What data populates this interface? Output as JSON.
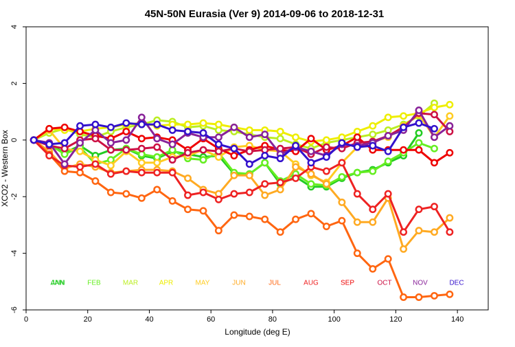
{
  "chart_data": {
    "type": "line",
    "title": "45N-50N Eurasia (Ver 9)   2014-09-06 to 2018-12-31",
    "xlabel": "Longitude (deg E)",
    "ylabel": "XCO2 - Western Box",
    "xlim": [
      0,
      150
    ],
    "ylim": [
      -6,
      4
    ],
    "xticks": [
      0,
      20,
      40,
      60,
      80,
      100,
      120,
      140
    ],
    "yticks": [
      -6,
      -4,
      -2,
      0,
      2,
      4
    ],
    "grid": false,
    "legend_placement": "inside-bottom",
    "series": [
      {
        "name": "JAN",
        "color": "#22cc22",
        "x": [
          2.5,
          7.5,
          12.5,
          17.5,
          22.5,
          27.5,
          32.5,
          37.5,
          42.5,
          47.5,
          52.5,
          57.5,
          62.5,
          67.5,
          72.5,
          77.5,
          82.5,
          87.5,
          92.5,
          97.5,
          102.5,
          107.5,
          112.5,
          117.5,
          122.5,
          127.5
        ],
        "y": [
          0.0,
          -0.15,
          -0.45,
          -0.2,
          -0.55,
          -0.35,
          -0.3,
          -0.55,
          -0.65,
          -0.4,
          -0.5,
          -0.6,
          -0.55,
          -1.2,
          -1.2,
          -0.8,
          -1.55,
          -1.3,
          -1.65,
          -1.65,
          -1.35,
          -1.15,
          -1.05,
          -0.8,
          -0.55,
          0.25
        ]
      },
      {
        "name": "FEB",
        "color": "#66ee22",
        "x": [
          2.5,
          7.5,
          12.5,
          17.5,
          22.5,
          27.5,
          32.5,
          37.5,
          42.5,
          47.5,
          52.5,
          57.5,
          62.5,
          67.5,
          72.5,
          77.5,
          82.5,
          87.5,
          92.5,
          97.5,
          102.5,
          107.5,
          112.5,
          117.5,
          122.5,
          127.5,
          132.5
        ],
        "y": [
          0.0,
          -0.15,
          -0.5,
          -0.25,
          -0.85,
          -0.7,
          -0.3,
          -0.5,
          -0.6,
          -0.35,
          -0.65,
          -0.7,
          -0.45,
          -1.15,
          -1.2,
          -0.8,
          -1.45,
          -1.2,
          -1.55,
          -1.6,
          -1.3,
          -1.15,
          -1.1,
          -0.75,
          -0.45,
          -0.1,
          -0.3
        ]
      },
      {
        "name": "MAR",
        "color": "#bbee22",
        "x": [
          2.5,
          7.5,
          12.5,
          17.5,
          22.5,
          27.5,
          32.5,
          37.5,
          42.5,
          47.5,
          52.5,
          57.5,
          62.5,
          67.5,
          72.5,
          77.5,
          82.5,
          87.5,
          92.5,
          97.5,
          102.5,
          107.5,
          112.5,
          117.5,
          122.5,
          127.5,
          132.5
        ],
        "y": [
          0.0,
          0.25,
          0.4,
          0.2,
          0.1,
          0.3,
          0.45,
          0.55,
          0.7,
          0.65,
          0.45,
          0.5,
          0.35,
          0.3,
          0.2,
          0.1,
          0.05,
          -0.15,
          -0.3,
          -0.1,
          0.0,
          0.1,
          0.2,
          0.35,
          0.55,
          0.85,
          1.3
        ]
      },
      {
        "name": "APR",
        "color": "#eeee00",
        "x": [
          2.5,
          7.5,
          12.5,
          17.5,
          22.5,
          27.5,
          32.5,
          37.5,
          42.5,
          47.5,
          52.5,
          57.5,
          62.5,
          67.5,
          72.5,
          77.5,
          82.5,
          87.5,
          92.5,
          97.5,
          102.5,
          107.5,
          112.5,
          117.5,
          122.5,
          127.5,
          132.5,
          137.5
        ],
        "y": [
          0.0,
          0.4,
          0.35,
          0.3,
          0.4,
          0.45,
          0.55,
          0.6,
          0.5,
          0.55,
          0.55,
          0.6,
          0.55,
          0.45,
          0.35,
          0.35,
          0.3,
          0.1,
          -0.05,
          0.0,
          0.1,
          0.3,
          0.5,
          0.8,
          0.85,
          0.95,
          1.15,
          1.25
        ]
      },
      {
        "name": "MAY",
        "color": "#ffcc22",
        "x": [
          2.5,
          7.5,
          12.5,
          17.5,
          22.5,
          27.5,
          32.5,
          37.5,
          42.5,
          47.5,
          52.5,
          57.5,
          62.5,
          67.5,
          72.5,
          77.5,
          82.5,
          87.5,
          92.5,
          97.5,
          102.5,
          107.5,
          112.5,
          117.5,
          122.5,
          127.5,
          132.5,
          137.5
        ],
        "y": [
          0.0,
          0.35,
          -0.3,
          -0.4,
          -0.7,
          -0.9,
          -0.4,
          -0.8,
          -0.8,
          -0.6,
          -0.55,
          -0.35,
          -0.6,
          -0.25,
          -0.2,
          -0.35,
          -0.4,
          -0.85,
          -1.25,
          -1.5,
          -0.8,
          -0.25,
          -0.05,
          0.1,
          0.5,
          0.9,
          0.1,
          0.85
        ]
      },
      {
        "name": "JUN",
        "color": "#ffaa22",
        "x": [
          2.5,
          7.5,
          12.5,
          17.5,
          22.5,
          27.5,
          32.5,
          37.5,
          42.5,
          47.5,
          52.5,
          57.5,
          62.5,
          67.5,
          72.5,
          77.5,
          82.5,
          87.5,
          92.5,
          97.5,
          102.5,
          107.5,
          112.5,
          117.5,
          122.5,
          127.5,
          132.5,
          137.5
        ],
        "y": [
          0.0,
          -0.4,
          -1.0,
          -0.85,
          -0.95,
          -1.15,
          -1.1,
          -1.05,
          -1.05,
          -1.1,
          -1.35,
          -1.75,
          -1.9,
          -1.25,
          -1.25,
          -1.95,
          -1.75,
          -0.95,
          -1.2,
          -1.55,
          -2.2,
          -2.9,
          -2.9,
          -2.05,
          -3.85,
          -3.2,
          -3.25,
          -2.75
        ]
      },
      {
        "name": "JUL",
        "color": "#ff6611",
        "x": [
          2.5,
          7.5,
          12.5,
          17.5,
          22.5,
          27.5,
          32.5,
          37.5,
          42.5,
          47.5,
          52.5,
          57.5,
          62.5,
          67.5,
          72.5,
          77.5,
          82.5,
          87.5,
          92.5,
          97.5,
          102.5,
          107.5,
          112.5,
          117.5,
          122.5,
          127.5,
          132.5,
          137.5
        ],
        "y": [
          0.0,
          -0.5,
          -1.1,
          -1.15,
          -1.45,
          -1.85,
          -1.9,
          -2.05,
          -1.75,
          -2.15,
          -2.45,
          -2.5,
          -3.2,
          -2.65,
          -2.7,
          -2.8,
          -3.25,
          -2.8,
          -2.6,
          -3.05,
          -2.85,
          -4.0,
          -4.55,
          -4.2,
          -5.55,
          -5.55,
          -5.5,
          -5.45
        ]
      },
      {
        "name": "AUG",
        "color": "#ee2222",
        "x": [
          2.5,
          7.5,
          12.5,
          17.5,
          22.5,
          27.5,
          32.5,
          37.5,
          42.5,
          47.5,
          52.5,
          57.5,
          62.5,
          67.5,
          72.5,
          77.5,
          82.5,
          87.5,
          92.5,
          97.5,
          102.5,
          107.5,
          112.5,
          117.5,
          122.5,
          127.5,
          132.5,
          137.5
        ],
        "y": [
          0.0,
          -0.55,
          -0.9,
          -0.95,
          -0.85,
          -1.2,
          -1.1,
          -1.15,
          -1.15,
          -1.15,
          -1.95,
          -1.85,
          -2.1,
          -1.9,
          -1.85,
          -1.55,
          -1.5,
          -1.35,
          -0.95,
          -1.1,
          -0.8,
          -1.9,
          -2.45,
          -1.9,
          -3.25,
          -2.45,
          -2.35,
          -3.25
        ]
      },
      {
        "name": "SEP",
        "color": "#ee0000",
        "x": [
          2.5,
          7.5,
          12.5,
          17.5,
          22.5,
          27.5,
          32.5,
          37.5,
          42.5,
          47.5,
          52.5,
          57.5,
          62.5,
          67.5,
          72.5,
          77.5,
          82.5,
          87.5,
          92.5,
          97.5,
          102.5,
          107.5,
          112.5,
          117.5,
          122.5,
          127.5,
          132.5,
          137.5
        ],
        "y": [
          0.0,
          0.4,
          0.45,
          0.3,
          0.15,
          0.05,
          0.3,
          0.05,
          0.1,
          0.0,
          -0.35,
          0.05,
          -0.3,
          -0.55,
          -0.35,
          -0.2,
          -0.35,
          -0.4,
          0.05,
          -0.35,
          -0.2,
          0.1,
          -0.35,
          -0.35,
          -0.35,
          -0.35,
          -0.8,
          -0.45
        ]
      },
      {
        "name": "OCT",
        "color": "#cc1144",
        "x": [
          2.5,
          7.5,
          12.5,
          17.5,
          22.5,
          27.5,
          32.5,
          37.5,
          42.5,
          47.5,
          52.5,
          57.5,
          62.5,
          67.5,
          72.5,
          77.5,
          82.5,
          87.5,
          92.5,
          97.5,
          102.5,
          107.5,
          112.5,
          117.5,
          122.5,
          127.5,
          132.5,
          137.5
        ],
        "y": [
          0.0,
          -0.2,
          -0.3,
          0.0,
          0.05,
          -0.35,
          -0.35,
          -0.3,
          -0.25,
          -0.7,
          -0.45,
          -0.35,
          -0.4,
          -0.3,
          -0.4,
          -0.35,
          -0.3,
          -0.25,
          -0.5,
          -0.25,
          -0.3,
          -0.1,
          -0.05,
          0.15,
          0.45,
          0.95,
          0.9,
          0.3
        ]
      },
      {
        "name": "NOV",
        "color": "#882299",
        "x": [
          2.5,
          7.5,
          12.5,
          17.5,
          22.5,
          27.5,
          32.5,
          37.5,
          42.5,
          47.5,
          52.5,
          57.5,
          62.5,
          67.5,
          72.5,
          77.5,
          82.5,
          87.5,
          92.5,
          97.5,
          102.5,
          107.5,
          112.5,
          117.5,
          122.5,
          127.5,
          132.5,
          137.5
        ],
        "y": [
          0.0,
          -0.1,
          -0.85,
          -0.1,
          0.35,
          -0.1,
          0.0,
          0.8,
          0.05,
          -0.15,
          0.25,
          0.1,
          0.1,
          0.45,
          0.1,
          0.2,
          -0.5,
          -0.25,
          -0.4,
          -0.55,
          -0.15,
          -0.2,
          -0.1,
          0.15,
          0.35,
          1.05,
          0.1,
          0.5
        ]
      },
      {
        "name": "DEC",
        "color": "#3311cc",
        "x": [
          2.5,
          7.5,
          12.5,
          17.5,
          22.5,
          27.5,
          32.5,
          37.5,
          42.5,
          47.5,
          52.5,
          57.5,
          62.5,
          67.5,
          72.5,
          77.5,
          82.5,
          87.5,
          92.5,
          97.5,
          102.5,
          107.5,
          112.5,
          117.5,
          122.5,
          127.5,
          132.5
        ],
        "y": [
          0.0,
          -0.15,
          -0.1,
          0.5,
          0.55,
          0.45,
          0.6,
          0.55,
          0.55,
          0.35,
          0.3,
          0.25,
          -0.15,
          -0.3,
          -0.85,
          -0.55,
          -0.65,
          -0.2,
          -0.8,
          -0.6,
          -0.1,
          -0.25,
          -0.2,
          -0.4,
          0.45,
          0.6,
          0.4
        ]
      }
    ],
    "legend": {
      "entries": [
        {
          "label": "ANN",
          "color": "#22cc22"
        },
        {
          "label": "JAN",
          "color": "#22cc22"
        },
        {
          "label": "FEB",
          "color": "#66ee22"
        },
        {
          "label": "MAR",
          "color": "#bbee22"
        },
        {
          "label": "APR",
          "color": "#eeee00"
        },
        {
          "label": "MAY",
          "color": "#ffcc22"
        },
        {
          "label": "JUN",
          "color": "#ffaa22"
        },
        {
          "label": "JUL",
          "color": "#ff6611"
        },
        {
          "label": "AUG",
          "color": "#ee2222"
        },
        {
          "label": "SEP",
          "color": "#ee0000"
        },
        {
          "label": "OCT",
          "color": "#cc1144"
        },
        {
          "label": "NOV",
          "color": "#882299"
        },
        {
          "label": "DEC",
          "color": "#3311cc"
        }
      ],
      "y": -5.05
    }
  }
}
